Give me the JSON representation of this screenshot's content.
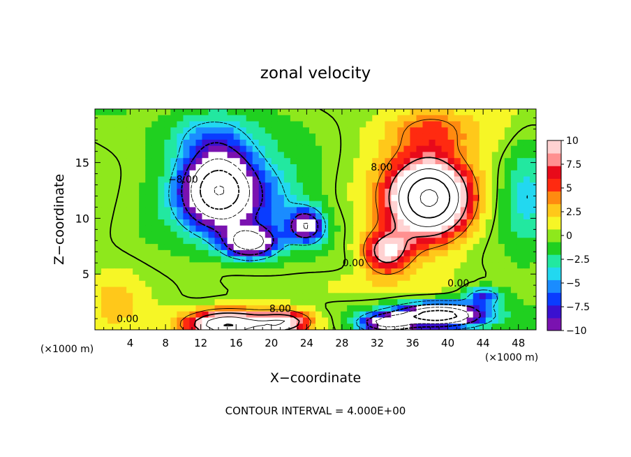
{
  "chart_data": {
    "type": "heatmap",
    "title": "zonal velocity",
    "xlabel": "X−coordinate",
    "ylabel": "Z−coordinate",
    "x_unit_left": "(×1000 m)",
    "x_unit_right": "(×1000 m)",
    "footer": "CONTOUR INTERVAL = 4.000E+00",
    "xlim": [
      0,
      50
    ],
    "ylim": [
      0,
      19.8
    ],
    "x_ticks": [
      4,
      8,
      12,
      16,
      20,
      24,
      28,
      32,
      36,
      40,
      44,
      48
    ],
    "y_ticks": [
      5,
      10,
      15
    ],
    "colorbar": {
      "range": [
        -10,
        10
      ],
      "tick_values": [
        10,
        7.5,
        5,
        2.5,
        0,
        -2.5,
        -5,
        -7.5,
        -10
      ],
      "tick_labels": [
        "10",
        "7.5",
        "5",
        "2.5",
        "0",
        "−2.5",
        "−5",
        "−7.5",
        "−10"
      ],
      "colors_low_to_high": [
        "#7a12b0",
        "#3a10d0",
        "#0a3cff",
        "#1a8cff",
        "#22d8f0",
        "#22e8a0",
        "#20d020",
        "#8ee81c",
        "#f6f626",
        "#ffc81a",
        "#ff8a10",
        "#ff2a10",
        "#e80a1a",
        "#ff9090",
        "#ffd2d2"
      ]
    },
    "contour_interval": 4,
    "contour_labels": [
      {
        "text": "−8.00",
        "x": 10.0,
        "z": 13.5
      },
      {
        "text": "8.00",
        "x": 32.5,
        "z": 14.6
      },
      {
        "text": "0.00",
        "x": 29.3,
        "z": 6.0
      },
      {
        "text": "0.00",
        "x": 41.2,
        "z": 4.2
      },
      {
        "text": "8.00",
        "x": 21.0,
        "z": 1.9
      },
      {
        "text": "0.00",
        "x": 3.7,
        "z": 1.0
      }
    ],
    "field_features": [
      {
        "kind": "min",
        "x": 14.0,
        "z": 12.5,
        "sx": 4.2,
        "sz": 3.4,
        "amp": -20
      },
      {
        "kind": "min",
        "x": 17.5,
        "z": 7.8,
        "sx": 3.0,
        "sz": 1.4,
        "amp": -13
      },
      {
        "kind": "min",
        "x": 24.0,
        "z": 9.3,
        "sx": 2.0,
        "sz": 1.5,
        "amp": -11
      },
      {
        "kind": "min",
        "x": 20.0,
        "z": 10.5,
        "sx": 4.0,
        "sz": 4.0,
        "amp": -4
      },
      {
        "kind": "min",
        "x": 13.0,
        "z": 17.5,
        "sx": 5.0,
        "sz": 2.5,
        "amp": -5
      },
      {
        "kind": "min",
        "x": 39.0,
        "z": 1.3,
        "sx": 5.0,
        "sz": 1.1,
        "amp": -20
      },
      {
        "kind": "min",
        "x": 33.0,
        "z": 0.6,
        "sx": 3.0,
        "sz": 0.8,
        "amp": -12
      },
      {
        "kind": "min",
        "x": 44.0,
        "z": 3.0,
        "sx": 2.0,
        "sz": 0.8,
        "amp": -7
      },
      {
        "kind": "max",
        "x": 38.0,
        "z": 11.8,
        "sx": 4.5,
        "sz": 3.4,
        "amp": 21
      },
      {
        "kind": "max",
        "x": 33.0,
        "z": 7.0,
        "sx": 2.8,
        "sz": 1.9,
        "amp": 10
      },
      {
        "kind": "max",
        "x": 38.0,
        "z": 18.0,
        "sx": 5.0,
        "sz": 2.2,
        "amp": 5
      },
      {
        "kind": "max",
        "x": 15.0,
        "z": 0.5,
        "sx": 4.5,
        "sz": 1.2,
        "amp": 17
      },
      {
        "kind": "max",
        "x": 21.5,
        "z": 0.7,
        "sx": 3.0,
        "sz": 1.0,
        "amp": 10
      },
      {
        "kind": "max",
        "x": 30.0,
        "z": 4.0,
        "sx": 6.0,
        "sz": 1.5,
        "amp": 2
      },
      {
        "kind": "max",
        "x": 2.0,
        "z": 2.5,
        "sx": 3.0,
        "sz": 2.5,
        "amp": 2
      },
      {
        "kind": "min",
        "x": 49.0,
        "z": 12.0,
        "sx": 2.5,
        "sz": 5.0,
        "amp": -4
      }
    ]
  }
}
